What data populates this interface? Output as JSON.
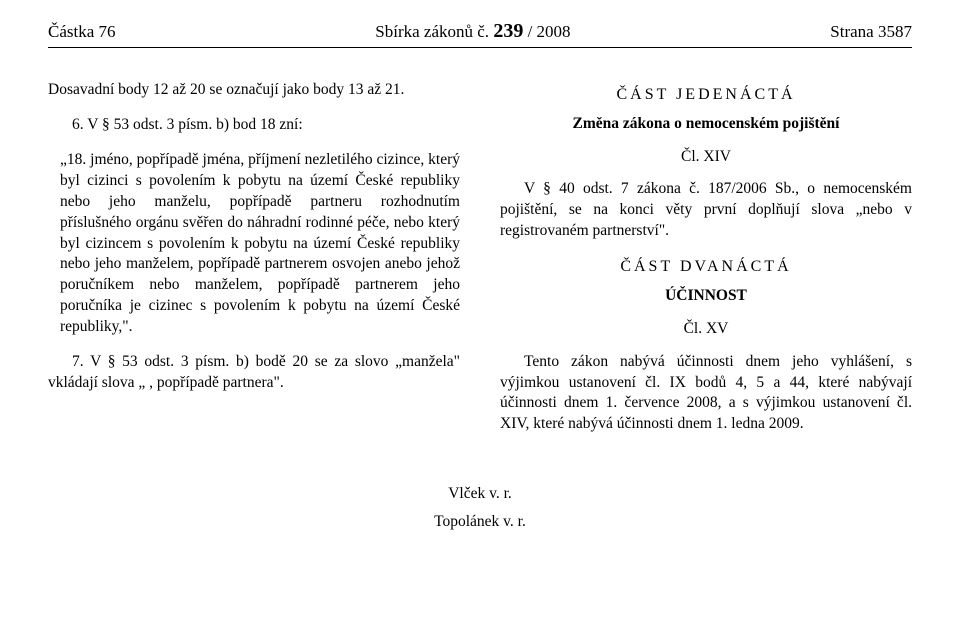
{
  "header": {
    "left": "Částka 76",
    "center_prefix": "Sbírka zákonů č. ",
    "center_num": "239",
    "center_suffix": " / 2008",
    "right": "Strana 3587"
  },
  "left_col": {
    "p1": "Dosavadní body 12 až 20 se označují jako body 13 až 21.",
    "p2": "6. V § 53 odst. 3 písm. b) bod 18 zní:",
    "quote": "„18. jméno, popřípadě jména, příjmení nezletilého cizince, který byl cizinci s povolením k pobytu na území České republiky nebo jeho manželu, popřípadě partneru rozhodnutím příslušného orgánu svěřen do náhradní rodinné péče, nebo který byl cizincem s povolením k pobytu na území České republiky nebo jeho manželem, popřípadě partnerem osvojen anebo jehož poručníkem nebo manželem, popřípadě partnerem jeho poručníka je cizinec s povolením k pobytu na území České republiky,\".",
    "p3": "7. V § 53 odst. 3 písm. b) bodě 20 se za slovo „manžela\" vkládají slova „ , popřípadě partnera\"."
  },
  "right_col": {
    "part11_title": "ČÁST JEDENÁCTÁ",
    "part11_sub": "Změna zákona o nemocenském pojištění",
    "art14": "Čl. XIV",
    "p4": "V § 40 odst. 7 zákona č. 187/2006 Sb., o nemocenském pojištění, se na konci věty první doplňují slova „nebo v registrovaném partnerství\".",
    "part12_title": "ČÁST DVANÁCTÁ",
    "part12_sub": "ÚČINNOST",
    "art15": "Čl. XV",
    "p5": "Tento zákon nabývá účinnosti dnem jeho vyhlášení, s výjimkou ustanovení čl. IX bodů 4, 5 a 44, které nabývají účinnosti dnem 1. července 2008, a s výjimkou ustanovení čl. XIV, které nabývá účinnosti dnem 1. ledna 2009."
  },
  "signatures": {
    "s1": "Vlček v. r.",
    "s2": "Topolánek v. r."
  }
}
